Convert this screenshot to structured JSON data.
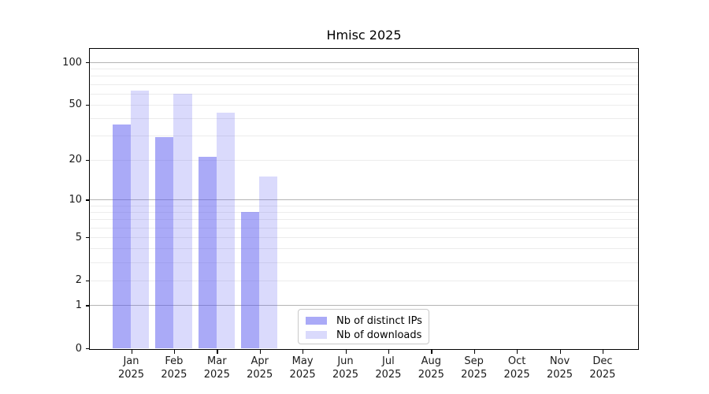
{
  "chart_data": {
    "type": "bar",
    "title": "Hmisc 2025",
    "year_label": "2025",
    "months": [
      "Jan",
      "Feb",
      "Mar",
      "Apr",
      "May",
      "Jun",
      "Jul",
      "Aug",
      "Sep",
      "Oct",
      "Nov",
      "Dec"
    ],
    "categories": [
      "Jan 2025",
      "Feb 2025",
      "Mar 2025",
      "Apr 2025",
      "May 2025",
      "Jun 2025",
      "Jul 2025",
      "Aug 2025",
      "Sep 2025",
      "Oct 2025",
      "Nov 2025",
      "Dec 2025"
    ],
    "series": [
      {
        "name": "Nb of distinct IPs",
        "color": "#5555F080",
        "values": [
          36,
          29,
          21,
          8,
          null,
          null,
          null,
          null,
          null,
          null,
          null,
          null
        ]
      },
      {
        "name": "Nb of downloads",
        "color": "#5555F038",
        "values": [
          63,
          60,
          44,
          15,
          null,
          null,
          null,
          null,
          null,
          null,
          null,
          null
        ]
      }
    ],
    "y_scale": "log1p",
    "ylim": [
      0,
      125
    ],
    "y_tick_values": [
      0,
      1,
      2,
      5,
      10,
      20,
      50,
      100
    ],
    "y_tick_labels": [
      "0",
      "1",
      "2",
      "5",
      "10",
      "20",
      "50",
      "100"
    ],
    "minor_gridlines": [
      2,
      3,
      4,
      5,
      6,
      7,
      8,
      9,
      20,
      30,
      40,
      50,
      60,
      70,
      80,
      90
    ],
    "major_gridlines": [
      1,
      10,
      100
    ],
    "colors": {
      "minor_gridline": "#ececec",
      "major_gridline": "#b5b5b5",
      "axis": "#000000",
      "text": "#1a1a1a",
      "legend_border": "#c9c9c9"
    },
    "legend_position": "bottom-center",
    "grid": "on"
  }
}
